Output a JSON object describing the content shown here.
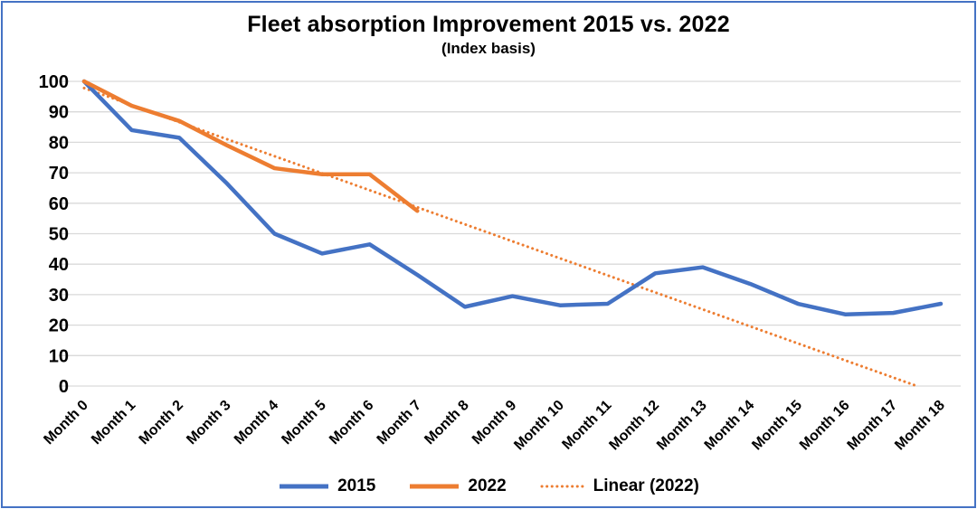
{
  "chart_data": {
    "type": "line",
    "title": "Fleet absorption Improvement 2015 vs. 2022",
    "subtitle": "(Index basis)",
    "categories": [
      "Month 0",
      "Month 1",
      "Month 2",
      "Month 3",
      "Month 4",
      "Month 5",
      "Month 6",
      "Month 7",
      "Month 8",
      "Month 9",
      "Month 10",
      "Month 11",
      "Month 12",
      "Month 13",
      "Month 14",
      "Month 15",
      "Month 16",
      "Month 17",
      "Month 18"
    ],
    "series": [
      {
        "name": "2015",
        "color": "#4472C4",
        "values": [
          100,
          84,
          81.5,
          66.5,
          50,
          43.5,
          46.5,
          36.5,
          26,
          29.5,
          26.5,
          27,
          37,
          39,
          33.5,
          27,
          23.5,
          24,
          27
        ]
      },
      {
        "name": "2022",
        "color": "#ED7D31",
        "values": [
          100,
          92,
          87,
          79,
          71.5,
          69.5,
          69.5,
          57.5
        ]
      }
    ],
    "trendline": {
      "name": "Linear (2022)",
      "color": "#ED7D31",
      "style": "dotted",
      "x_start": 0,
      "y_start": 97.8,
      "x_end": 17.5,
      "y_end": 0
    },
    "ylim": [
      0,
      100
    ],
    "ytick_step": 10,
    "yticks": [
      0,
      10,
      20,
      30,
      40,
      50,
      60,
      70,
      80,
      90,
      100
    ],
    "grid": "horizontal",
    "legend_position": "bottom",
    "x_label_rotation_deg": -45
  },
  "style": {
    "gridline_color": "#D9D9D9",
    "text_color": "#000000",
    "frame_border_color": "#4472C4"
  }
}
